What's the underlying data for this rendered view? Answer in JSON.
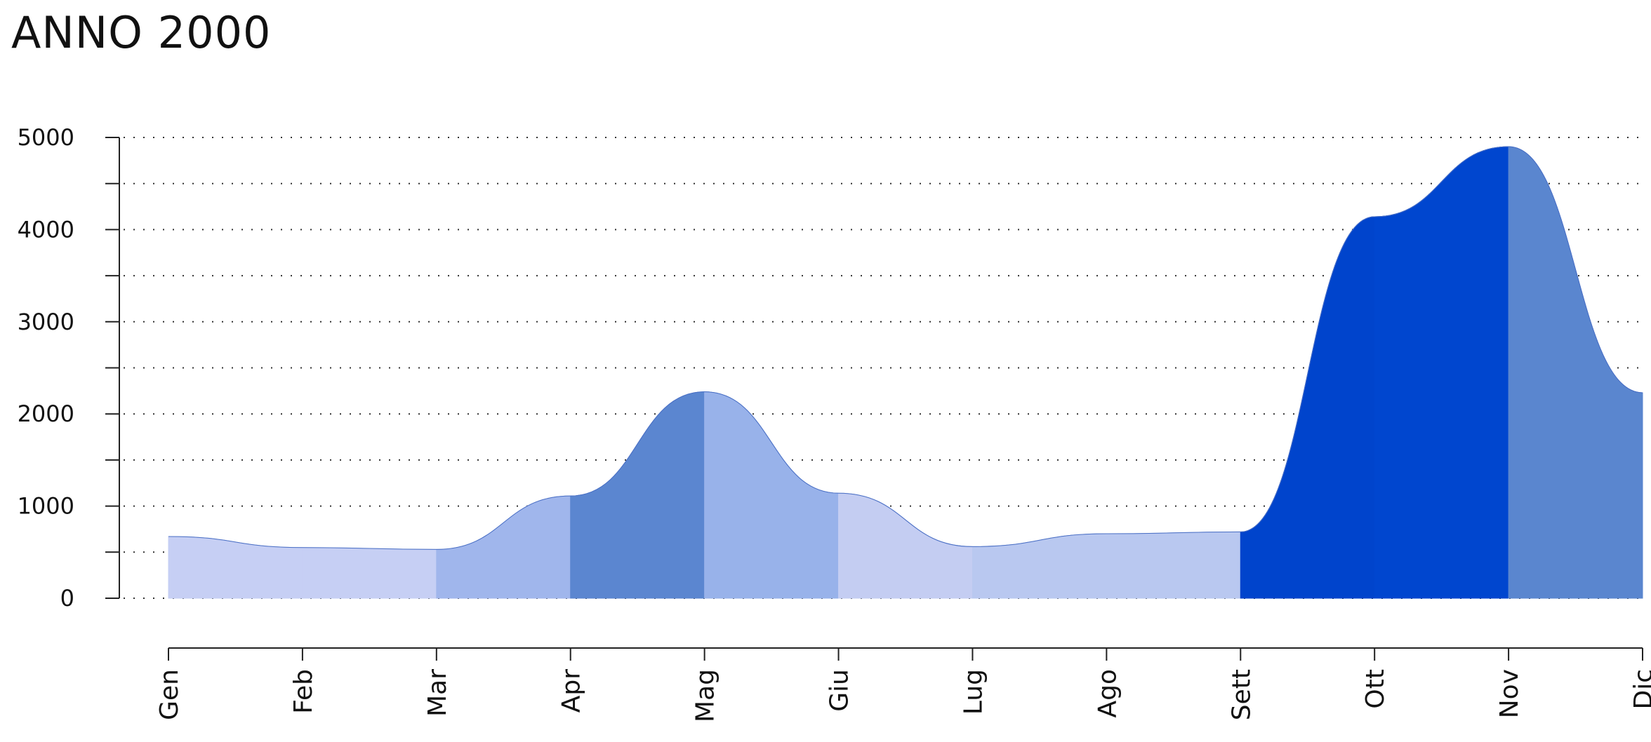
{
  "chart_data": {
    "type": "area",
    "title": "ANNO 2000",
    "xlabel": "",
    "ylabel": "",
    "categories": [
      "Gen",
      "Feb",
      "Mar",
      "Apr",
      "Mag",
      "Giu",
      "Lug",
      "Ago",
      "Sett",
      "Ott",
      "Nov",
      "Dic"
    ],
    "ylim": [
      0,
      5000
    ],
    "yticks": [
      0,
      1000,
      2000,
      3000,
      4000,
      5000
    ],
    "ytick_labels": [
      "0",
      "1000",
      "2000",
      "3000",
      "4000",
      "5000"
    ],
    "grid": true,
    "legend": "none",
    "series": [
      {
        "values": [
          670,
          0,
          0,
          0,
          0,
          0,
          0,
          0,
          0,
          0,
          0,
          0
        ],
        "color": "#bcc9f0"
      },
      {
        "values": [
          0,
          550,
          0,
          0,
          0,
          0,
          0,
          0,
          0,
          0,
          0,
          0
        ],
        "color": "#c6cff4"
      },
      {
        "values": [
          0,
          0,
          530,
          0,
          0,
          0,
          0,
          0,
          0,
          0,
          0,
          0
        ],
        "color": "#c6cff4"
      },
      {
        "values": [
          0,
          0,
          0,
          1110,
          0,
          0,
          0,
          0,
          0,
          0,
          0,
          0
        ],
        "color": "#a0b6ec"
      },
      {
        "values": [
          0,
          0,
          0,
          0,
          2240,
          0,
          0,
          0,
          0,
          0,
          0,
          0
        ],
        "color": "#5b86d0"
      },
      {
        "values": [
          0,
          0,
          0,
          0,
          0,
          1140,
          0,
          0,
          0,
          0,
          0,
          0
        ],
        "color": "#98b2ea"
      },
      {
        "values": [
          0,
          0,
          0,
          0,
          0,
          0,
          560,
          0,
          0,
          0,
          0,
          0
        ],
        "color": "#c4cdf2"
      },
      {
        "values": [
          0,
          0,
          0,
          0,
          0,
          0,
          0,
          700,
          0,
          0,
          0,
          0
        ],
        "color": "#b9c8f0"
      },
      {
        "values": [
          0,
          0,
          0,
          0,
          0,
          0,
          0,
          0,
          720,
          0,
          0,
          0
        ],
        "color": "#b9c8f0"
      },
      {
        "values": [
          0,
          0,
          0,
          0,
          0,
          0,
          0,
          0,
          0,
          4140,
          0,
          0
        ],
        "color": "#0044cc"
      },
      {
        "values": [
          0,
          0,
          0,
          0,
          0,
          0,
          0,
          0,
          0,
          0,
          4900,
          0
        ],
        "color": "#0046cf"
      },
      {
        "values": [
          0,
          0,
          0,
          0,
          0,
          0,
          0,
          0,
          0,
          0,
          0,
          2230
        ],
        "color": "#5a86cf"
      }
    ]
  }
}
